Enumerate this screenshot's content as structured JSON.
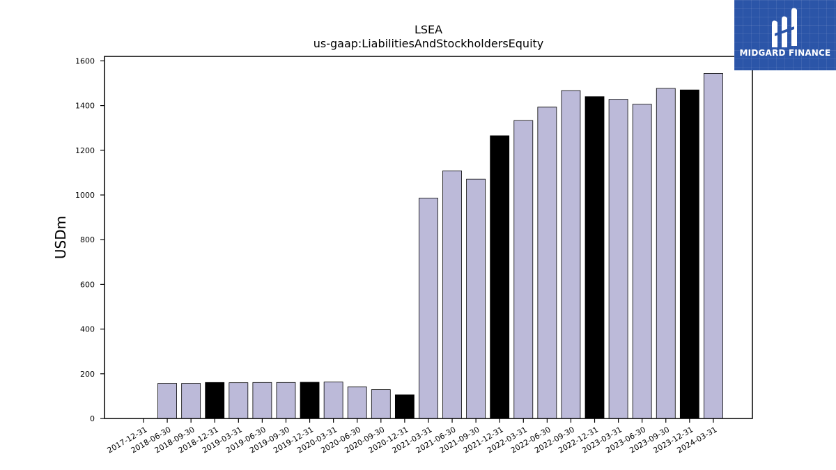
{
  "brand": {
    "name": "MIDGARD FINANCE",
    "background_color": "#2b55a8"
  },
  "chart_data": {
    "type": "bar",
    "title": "LSEA",
    "subtitle": "us-gaap:LiabilitiesAndStockholdersEquity",
    "xlabel": "",
    "ylabel": "USDm",
    "ylim": [
      0,
      1620
    ],
    "yticks": [
      0,
      200,
      400,
      600,
      800,
      1000,
      1200,
      1400,
      1600
    ],
    "grid": false,
    "legend": "none",
    "colors": {
      "quarter": "#bcbad9",
      "year_end": "#000000",
      "edge": "#000000"
    },
    "categories": [
      "2017-12-31",
      "2018-06-30",
      "2018-09-30",
      "2018-12-31",
      "2019-03-31",
      "2019-06-30",
      "2019-09-30",
      "2019-12-31",
      "2020-03-31",
      "2020-06-30",
      "2020-09-30",
      "2020-12-31",
      "2021-03-31",
      "2021-06-30",
      "2021-09-30",
      "2021-12-31",
      "2022-03-31",
      "2022-06-30",
      "2022-09-30",
      "2022-12-31",
      "2023-03-31",
      "2023-06-30",
      "2023-09-30",
      "2023-12-31",
      "2024-03-31"
    ],
    "values": [
      null,
      157,
      157,
      161,
      160,
      161,
      161,
      162,
      163,
      141,
      129,
      106,
      986,
      1108,
      1071,
      1265,
      1333,
      1393,
      1467,
      1440,
      1428,
      1406,
      1477,
      1470,
      1544
    ],
    "year_end_flags": [
      true,
      false,
      false,
      true,
      false,
      false,
      false,
      true,
      false,
      false,
      false,
      true,
      false,
      false,
      false,
      true,
      false,
      false,
      false,
      true,
      false,
      false,
      false,
      true,
      false
    ]
  }
}
